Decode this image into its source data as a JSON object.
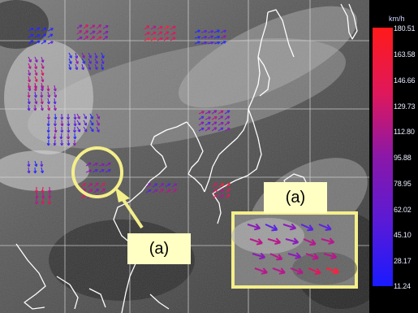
{
  "colorbar": {
    "unit": "km/h",
    "ticks": [
      "180.51",
      "163.58",
      "146.66",
      "129.73",
      "112.80",
      "95.88",
      "78.95",
      "62.02",
      "45.10",
      "28.17",
      "11.24"
    ],
    "color_high": "#ff1a1a",
    "color_low": "#1a1aff"
  },
  "callouts": {
    "left_label": "(a)",
    "inset_label": "(a)",
    "highlight_color": "#f4ef8a",
    "label_bg": "#ffffc4"
  },
  "map": {
    "background": "satellite grayscale imagery",
    "coastline_color": "#ffffff",
    "grid_color": "#d9d9d9",
    "vector_icon": "wind-arrow"
  }
}
